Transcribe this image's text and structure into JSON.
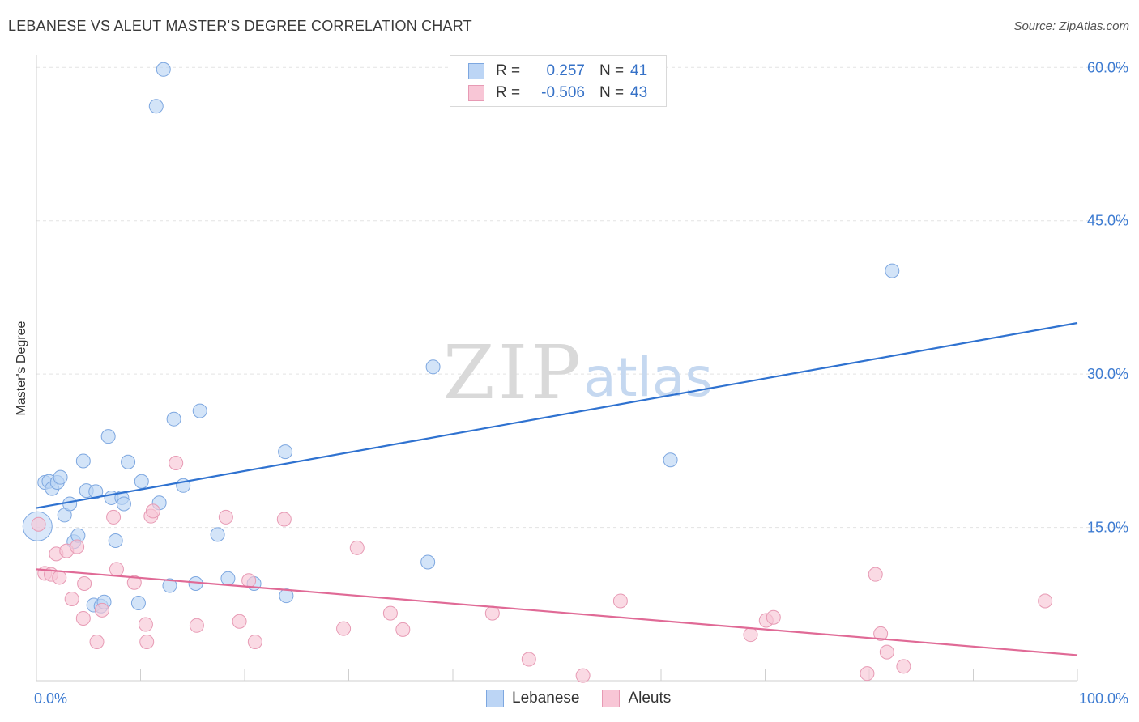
{
  "header": {
    "title": "LEBANESE VS ALEUT MASTER'S DEGREE CORRELATION CHART",
    "source": "Source: ZipAtlas.com"
  },
  "watermark": {
    "zip": "ZIP",
    "atlas": "atlas"
  },
  "legend": {
    "r_label": "R =",
    "n_label": "N =",
    "rows": [
      {
        "r": "0.257",
        "n": "41"
      },
      {
        "r": "-0.506",
        "n": "43"
      }
    ]
  },
  "colors": {
    "blue_fill": "#bcd5f5",
    "blue_stroke": "#7da7e0",
    "blue_line": "#2f72d0",
    "pink_fill": "#f8c6d6",
    "pink_stroke": "#e79ab4",
    "pink_line": "#e06a96",
    "tick_label": "#3d7bd1",
    "grid": "#e3e3e3"
  },
  "chart_data": {
    "type": "scatter",
    "title": "LEBANESE VS ALEUT MASTER'S DEGREE CORRELATION CHART",
    "xlabel": "",
    "ylabel": "Master's Degree",
    "xlim": [
      0,
      100
    ],
    "ylim": [
      0,
      62
    ],
    "x_tick_labels": [
      {
        "value": 0,
        "label": "0.0%"
      },
      {
        "value": 100,
        "label": "100.0%"
      }
    ],
    "y_tick_labels": [
      {
        "value": 15,
        "label": "15.0%"
      },
      {
        "value": 30,
        "label": "30.0%"
      },
      {
        "value": 45,
        "label": "45.0%"
      },
      {
        "value": 60,
        "label": "60.0%"
      }
    ],
    "series": [
      {
        "name": "Lebanese",
        "trend": {
          "x": [
            0,
            100
          ],
          "y": [
            16.9,
            35.0
          ]
        },
        "points": [
          {
            "x": 0.1,
            "y": 15.1,
            "big": true
          },
          {
            "x": 0.8,
            "y": 19.4
          },
          {
            "x": 1.2,
            "y": 19.5
          },
          {
            "x": 1.5,
            "y": 18.8
          },
          {
            "x": 2.0,
            "y": 19.4
          },
          {
            "x": 2.3,
            "y": 19.9
          },
          {
            "x": 2.7,
            "y": 16.2
          },
          {
            "x": 3.2,
            "y": 17.3
          },
          {
            "x": 3.6,
            "y": 13.6
          },
          {
            "x": 4.0,
            "y": 14.2
          },
          {
            "x": 4.5,
            "y": 21.5
          },
          {
            "x": 4.8,
            "y": 18.6
          },
          {
            "x": 5.5,
            "y": 7.4
          },
          {
            "x": 5.7,
            "y": 18.5
          },
          {
            "x": 6.2,
            "y": 7.3
          },
          {
            "x": 6.5,
            "y": 7.7
          },
          {
            "x": 6.9,
            "y": 23.9
          },
          {
            "x": 7.2,
            "y": 17.9
          },
          {
            "x": 7.6,
            "y": 13.7
          },
          {
            "x": 8.2,
            "y": 17.9
          },
          {
            "x": 8.4,
            "y": 17.3
          },
          {
            "x": 8.8,
            "y": 21.4
          },
          {
            "x": 9.8,
            "y": 7.6
          },
          {
            "x": 10.1,
            "y": 19.5
          },
          {
            "x": 11.5,
            "y": 56.2
          },
          {
            "x": 11.8,
            "y": 17.4
          },
          {
            "x": 12.2,
            "y": 59.8
          },
          {
            "x": 12.8,
            "y": 9.3
          },
          {
            "x": 13.2,
            "y": 25.6
          },
          {
            "x": 14.1,
            "y": 19.1
          },
          {
            "x": 15.3,
            "y": 9.5
          },
          {
            "x": 15.7,
            "y": 26.4
          },
          {
            "x": 17.4,
            "y": 14.3
          },
          {
            "x": 18.4,
            "y": 10.0
          },
          {
            "x": 20.9,
            "y": 9.5
          },
          {
            "x": 23.9,
            "y": 22.4
          },
          {
            "x": 24.0,
            "y": 8.3
          },
          {
            "x": 37.6,
            "y": 11.6
          },
          {
            "x": 38.1,
            "y": 30.7
          },
          {
            "x": 60.9,
            "y": 21.6
          },
          {
            "x": 82.2,
            "y": 40.1
          }
        ]
      },
      {
        "name": "Aleuts",
        "trend": {
          "x": [
            0,
            100
          ],
          "y": [
            10.9,
            2.5
          ]
        },
        "points": [
          {
            "x": 0.2,
            "y": 15.3
          },
          {
            "x": 0.8,
            "y": 10.5
          },
          {
            "x": 1.4,
            "y": 10.4
          },
          {
            "x": 1.9,
            "y": 12.4
          },
          {
            "x": 2.2,
            "y": 10.1
          },
          {
            "x": 2.9,
            "y": 12.7
          },
          {
            "x": 3.4,
            "y": 8.0
          },
          {
            "x": 3.9,
            "y": 13.1
          },
          {
            "x": 4.5,
            "y": 6.1
          },
          {
            "x": 4.6,
            "y": 9.5
          },
          {
            "x": 5.8,
            "y": 3.8
          },
          {
            "x": 6.3,
            "y": 6.9
          },
          {
            "x": 7.4,
            "y": 16.0
          },
          {
            "x": 7.7,
            "y": 10.9
          },
          {
            "x": 9.4,
            "y": 9.6
          },
          {
            "x": 10.5,
            "y": 5.5
          },
          {
            "x": 10.6,
            "y": 3.8
          },
          {
            "x": 11.0,
            "y": 16.1
          },
          {
            "x": 11.2,
            "y": 16.6
          },
          {
            "x": 13.4,
            "y": 21.3
          },
          {
            "x": 15.4,
            "y": 5.4
          },
          {
            "x": 18.2,
            "y": 16.0
          },
          {
            "x": 19.5,
            "y": 5.8
          },
          {
            "x": 20.4,
            "y": 9.8
          },
          {
            "x": 21.0,
            "y": 3.8
          },
          {
            "x": 23.8,
            "y": 15.8
          },
          {
            "x": 29.5,
            "y": 5.1
          },
          {
            "x": 30.8,
            "y": 13.0
          },
          {
            "x": 34.0,
            "y": 6.6
          },
          {
            "x": 35.2,
            "y": 5.0
          },
          {
            "x": 43.8,
            "y": 6.6
          },
          {
            "x": 47.3,
            "y": 2.1
          },
          {
            "x": 52.5,
            "y": 0.5
          },
          {
            "x": 56.1,
            "y": 7.8
          },
          {
            "x": 68.6,
            "y": 4.5
          },
          {
            "x": 70.1,
            "y": 5.9
          },
          {
            "x": 70.8,
            "y": 6.2
          },
          {
            "x": 79.8,
            "y": 0.7
          },
          {
            "x": 80.6,
            "y": 10.4
          },
          {
            "x": 81.1,
            "y": 4.6
          },
          {
            "x": 81.7,
            "y": 2.8
          },
          {
            "x": 83.3,
            "y": 1.4
          },
          {
            "x": 96.9,
            "y": 7.8
          }
        ]
      }
    ]
  }
}
